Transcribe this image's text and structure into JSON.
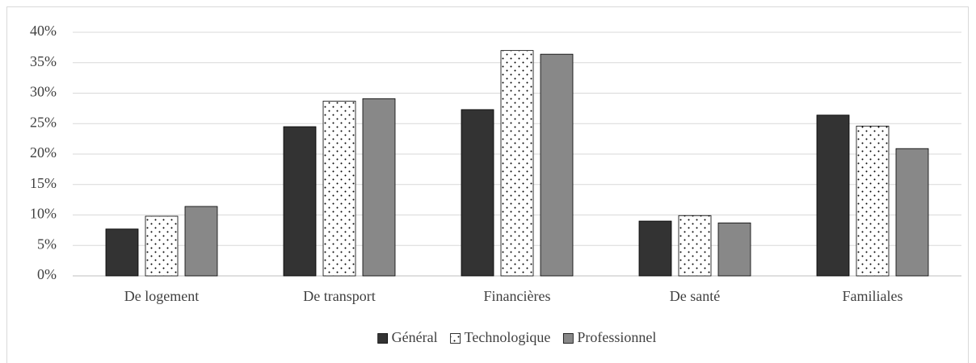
{
  "chart_data": {
    "type": "bar",
    "categories": [
      "De logement",
      "De transport",
      "Financières",
      "De santé",
      "Familiales"
    ],
    "series": [
      {
        "name": "Général",
        "color": "#333333",
        "values": [
          7.7,
          24.5,
          27.3,
          9.0,
          26.4
        ]
      },
      {
        "name": "Technologique",
        "color": "#ffffff",
        "pattern": "dots",
        "values": [
          9.8,
          28.7,
          37.0,
          9.9,
          24.6
        ]
      },
      {
        "name": "Professionnel",
        "color": "#888888",
        "values": [
          11.4,
          29.1,
          36.4,
          8.7,
          20.9
        ]
      }
    ],
    "ylim": [
      0,
      40
    ],
    "yticks": [
      {
        "value": 0,
        "label": "0%"
      },
      {
        "value": 5,
        "label": "5%"
      },
      {
        "value": 10,
        "label": "10%"
      },
      {
        "value": 15,
        "label": "15%"
      },
      {
        "value": 20,
        "label": "20%"
      },
      {
        "value": 25,
        "label": "25%"
      },
      {
        "value": 30,
        "label": "30%"
      },
      {
        "value": 35,
        "label": "35%"
      },
      {
        "value": 40,
        "label": "40%"
      }
    ],
    "grid": true,
    "legend": "bottom"
  }
}
